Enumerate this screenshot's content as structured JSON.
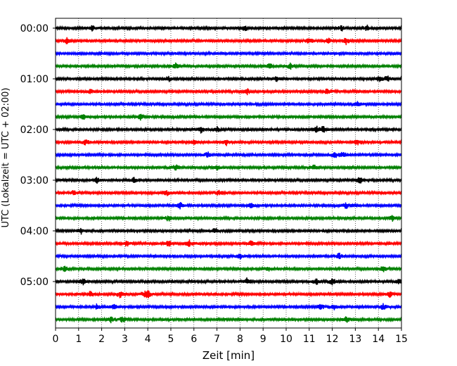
{
  "chart_data": {
    "type": "line",
    "title": "",
    "xlabel": "Zeit  [min]",
    "ylabel": "UTC (Lokalzeit = UTC + 02:00)",
    "xlim": [
      0,
      15
    ],
    "x_ticks": [
      0,
      1,
      2,
      3,
      4,
      5,
      6,
      7,
      8,
      9,
      10,
      11,
      12,
      13,
      14,
      15
    ],
    "x_grid": "dotted vertical lines at each minute",
    "y_ticks": [
      "00:00",
      "01:00",
      "02:00",
      "03:00",
      "04:00",
      "05:00"
    ],
    "trace_interval_min": 15,
    "trace_count": 24,
    "trace_colors": [
      "#000000",
      "#ff0000",
      "#0000ff",
      "#008000"
    ],
    "event_bursts": [
      [
        1.6,
        8.2,
        12.4,
        13.5
      ],
      [
        0.5,
        11.0,
        11.8,
        12.6
      ],
      [],
      [
        5.2,
        9.3,
        10.2
      ],
      [
        4.9,
        9.6,
        14.0,
        14.4
      ],
      [
        1.5,
        8.3,
        11.8
      ],
      [
        13.1
      ],
      [
        1.2,
        3.7
      ],
      [
        6.3,
        7.0,
        11.3,
        11.6
      ],
      [
        1.3,
        6.0,
        7.4,
        13.1
      ],
      [
        6.6,
        12.1,
        12.5
      ],
      [
        5.2,
        7.0,
        11.2
      ],
      [
        1.8,
        3.4,
        13.2
      ],
      [
        0.8,
        4.8,
        7.1
      ],
      [
        5.4,
        8.5,
        12.6
      ],
      [
        4.9,
        14.6
      ],
      [
        1.1,
        6.9
      ],
      [
        3.1,
        4.9,
        5.8,
        8.5
      ],
      [
        8.0,
        12.3
      ],
      [
        0.4,
        9.2,
        14.2
      ],
      [
        1.2,
        8.3,
        11.3,
        12.0,
        14.9
      ],
      [
        1.5,
        2.8,
        3.9,
        4.0,
        14.5
      ],
      [
        1.8,
        2.5,
        11.5,
        12.1,
        14.2
      ],
      [
        2.4,
        2.9,
        12.6
      ]
    ]
  }
}
